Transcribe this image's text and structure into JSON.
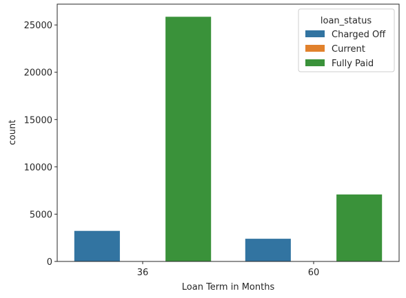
{
  "chart_data": {
    "type": "bar",
    "title": "",
    "xlabel": "Loan Term in Months",
    "ylabel": "count",
    "categories": [
      "36",
      "60"
    ],
    "series": [
      {
        "name": "Charged Off",
        "color": "#3274a1",
        "values": [
          3227,
          2400
        ]
      },
      {
        "name": "Current",
        "color": "#e1812c",
        "values": [
          0,
          0
        ]
      },
      {
        "name": "Fully Paid",
        "color": "#3a923a",
        "values": [
          25869,
          7081
        ]
      }
    ],
    "yticks": [
      0,
      5000,
      10000,
      15000,
      20000,
      25000
    ],
    "ylim": [
      0,
      27200
    ],
    "grid": false,
    "legend": {
      "title": "loan_status",
      "placement": "top-right"
    }
  }
}
